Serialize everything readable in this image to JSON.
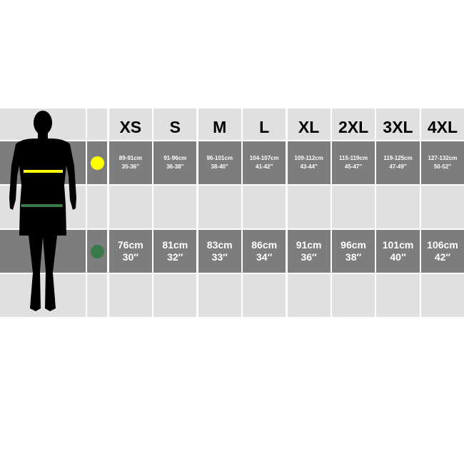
{
  "sizes": [
    "XS",
    "S",
    "M",
    "L",
    "XL",
    "2XL",
    "3XL",
    "4XL"
  ],
  "chest": {
    "marker_color": "#ffff00",
    "cm": [
      "89-91cm",
      "91-96cm",
      "96-101cm",
      "104-107cm",
      "109-112cm",
      "115-119cm",
      "119-125cm",
      "127-132cm"
    ],
    "in": [
      "35-36″",
      "36-38″",
      "38-40″",
      "41-42″",
      "43-44″",
      "45-47″",
      "47-49″",
      "50-52″"
    ]
  },
  "waist": {
    "marker_color": "#3a7a4a",
    "cm": [
      "76cm",
      "81cm",
      "83cm",
      "86cm",
      "91cm",
      "96cm",
      "101cm",
      "106cm"
    ],
    "in": [
      "30″",
      "32″",
      "33″",
      "34″",
      "36″",
      "38″",
      "40″",
      "42″"
    ]
  },
  "colors": {
    "light_row": "#e0e0e0",
    "dark_row": "#7d7d7d"
  }
}
